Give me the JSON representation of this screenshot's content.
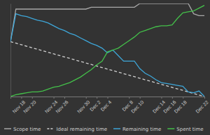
{
  "chart_data": {
    "type": "line",
    "categories": [
      null,
      null,
      "Nov 18",
      null,
      "Nov 20",
      null,
      null,
      null,
      "Nov 24",
      null,
      "Nov 26",
      null,
      null,
      null,
      "Nov 30",
      null,
      "Dec 2",
      null,
      "Dec 4",
      null,
      null,
      null,
      "Dec 8",
      null,
      "Dec 10",
      null,
      null,
      null,
      "Dec 14",
      null,
      "Dec 16",
      null,
      "Dec 18",
      null,
      null,
      null,
      "Dec 22"
    ],
    "series": [
      {
        "name": "Scope time",
        "color": "#a8a8a8",
        "line_style": "solid",
        "values": [
          59,
          94,
          94,
          94,
          94,
          94,
          94,
          94,
          94,
          94,
          94,
          94,
          94,
          94,
          94,
          96,
          96,
          96,
          96,
          96,
          96,
          96,
          96,
          96,
          100,
          100,
          100,
          100,
          100,
          100,
          100,
          100,
          100,
          100,
          89,
          87,
          87
        ]
      },
      {
        "name": "Ideal remaining time",
        "color": "#d0d0d0",
        "line_style": "dashed",
        "values": [
          59,
          57.4,
          55.7,
          54.1,
          52.4,
          50.8,
          49.2,
          47.5,
          45.9,
          44.3,
          42.6,
          41,
          39.3,
          37.7,
          36.1,
          34.4,
          32.8,
          31.1,
          29.5,
          27.9,
          26.2,
          24.6,
          23,
          21.3,
          19.7,
          18,
          16.4,
          14.8,
          13.1,
          11.5,
          9.8,
          8.2,
          6.6,
          4.9,
          3.3,
          1.6,
          0
        ]
      },
      {
        "name": "Remaining time",
        "color": "#3ea6d8",
        "line_style": "solid",
        "values": [
          59,
          89,
          87,
          86,
          84,
          82,
          81,
          79,
          76,
          73,
          71,
          68,
          66,
          63,
          60,
          57,
          55,
          52,
          47,
          50,
          44,
          38,
          38,
          38,
          30,
          25,
          22,
          18,
          15,
          14,
          13,
          12,
          11,
          5,
          4,
          6,
          0
        ]
      },
      {
        "name": "Spent time",
        "color": "#44c04a",
        "line_style": "solid",
        "values": [
          0,
          2,
          3,
          4,
          5,
          5,
          6,
          8,
          10,
          11,
          13,
          15,
          18,
          21,
          25,
          29,
          34,
          38,
          48,
          50,
          52,
          56,
          60,
          64,
          69,
          71,
          73,
          75,
          76,
          76,
          77,
          84,
          90,
          91,
          92,
          95,
          98
        ]
      }
    ],
    "ylim": [
      0,
      100
    ],
    "tick_labels": "x",
    "legend": "bottom"
  }
}
